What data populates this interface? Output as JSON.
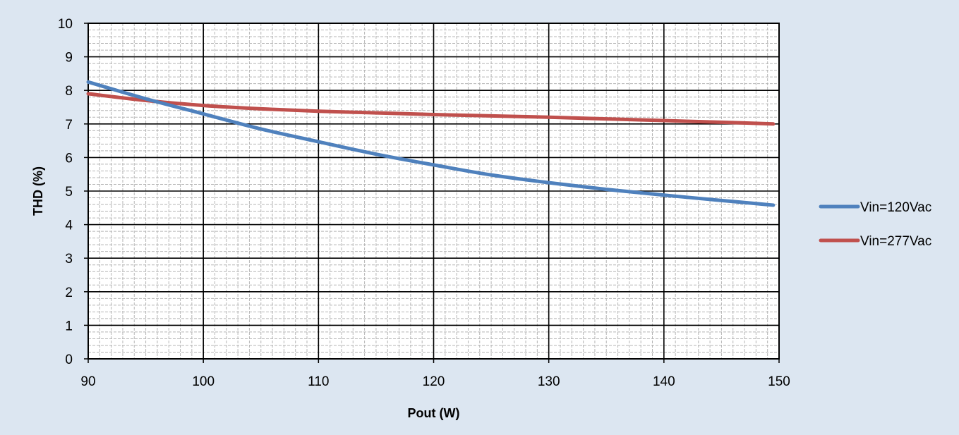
{
  "chart_data": {
    "type": "line",
    "title": "",
    "xlabel": "Pout (W)",
    "ylabel": "THD (%)",
    "xlim": [
      90,
      150
    ],
    "ylim": [
      0,
      10
    ],
    "x_ticks": [
      90,
      100,
      110,
      120,
      130,
      140,
      150
    ],
    "y_ticks": [
      0,
      1,
      2,
      3,
      4,
      5,
      6,
      7,
      8,
      9,
      10
    ],
    "grid": "major and minor",
    "legend_position": "right",
    "series": [
      {
        "name": "Vin=120Vac",
        "color": "#4f81bd",
        "x": [
          90,
          95,
          100,
          105,
          110,
          115,
          120,
          125,
          130,
          135,
          140,
          145,
          149.5
        ],
        "y": [
          8.25,
          7.75,
          7.3,
          6.85,
          6.47,
          6.1,
          5.78,
          5.48,
          5.25,
          5.05,
          4.88,
          4.72,
          4.58
        ]
      },
      {
        "name": "Vin=277Vac",
        "color": "#c0504d",
        "x": [
          90,
          95,
          100,
          105,
          110,
          115,
          120,
          125,
          130,
          135,
          140,
          145,
          149.5
        ],
        "y": [
          7.9,
          7.7,
          7.55,
          7.45,
          7.38,
          7.33,
          7.28,
          7.24,
          7.2,
          7.15,
          7.1,
          7.05,
          7.0
        ]
      }
    ]
  }
}
